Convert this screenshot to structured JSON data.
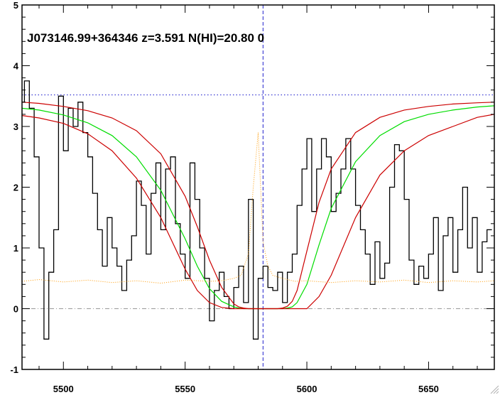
{
  "chart_data": {
    "type": "line",
    "title": "J073146.99+364346 z=3.591 N(HI)=20.80 0",
    "xlim": [
      5483,
      5677
    ],
    "ylim": [
      -1,
      5
    ],
    "xticks": [
      5500,
      5550,
      5600,
      5650
    ],
    "yticks": [
      -1,
      0,
      1,
      2,
      3,
      4,
      5
    ],
    "xlabel": "",
    "ylabel": "",
    "continuum_level": 3.52,
    "absorption_center": 5582,
    "zero_level": 0,
    "colors": {
      "flux": "#000000",
      "fit": "#00dd00",
      "fit_bounds": "#cc0000",
      "continuum": "#2a2ad0",
      "center": "#2020cc",
      "error": "#ff9900",
      "zero": "#999999",
      "frame": "#000000"
    },
    "series": [
      {
        "style": "histogram",
        "x": [
          5483,
          5485,
          5487,
          5489,
          5491,
          5493,
          5495,
          5497,
          5499,
          5501,
          5503,
          5505,
          5507,
          5509,
          5511,
          5513,
          5515,
          5517,
          5519,
          5521,
          5523,
          5525,
          5527,
          5529,
          5531,
          5533,
          5535,
          5537,
          5539,
          5541,
          5543,
          5545,
          5547,
          5549,
          5551,
          5553,
          5555,
          5557,
          5559,
          5561,
          5563,
          5565,
          5567,
          5569,
          5571,
          5573,
          5575,
          5577,
          5579,
          5581,
          5583,
          5585,
          5587,
          5589,
          5591,
          5593,
          5595,
          5597,
          5599,
          5601,
          5603,
          5605,
          5607,
          5609,
          5611,
          5613,
          5615,
          5617,
          5619,
          5621,
          5623,
          5625,
          5627,
          5629,
          5631,
          5633,
          5635,
          5637,
          5639,
          5641,
          5643,
          5645,
          5647,
          5649,
          5651,
          5653,
          5655,
          5657,
          5659,
          5661,
          5663,
          5665,
          5667,
          5669,
          5671,
          5673,
          5675
        ],
        "values": [
          3.4,
          3.75,
          3.3,
          2.5,
          1.0,
          -0.5,
          0.6,
          1.3,
          3.5,
          2.6,
          3.3,
          3.0,
          3.4,
          2.9,
          2.5,
          1.9,
          1.3,
          0.7,
          1.5,
          1.0,
          0.7,
          0.3,
          0.8,
          1.2,
          2.1,
          1.7,
          0.9,
          1.9,
          2.4,
          1.3,
          2.3,
          2.5,
          1.4,
          0.9,
          0.5,
          2.4,
          1.8,
          1.0,
          0.5,
          -0.2,
          0.3,
          0.6,
          0.2,
          0.0,
          0.35,
          0.7,
          0.1,
          1.8,
          -0.5,
          0.5,
          0.7,
          0.35,
          0.3,
          0.6,
          0.1,
          0.6,
          0.9,
          1.7,
          2.3,
          2.8,
          1.6,
          2.3,
          2.8,
          2.5,
          1.6,
          1.9,
          2.3,
          2.8,
          2.3,
          1.7,
          1.3,
          0.9,
          0.4,
          1.1,
          0.5,
          0.75,
          2.0,
          2.7,
          2.6,
          1.8,
          0.8,
          0.4,
          0.7,
          0.5,
          0.9,
          1.5,
          0.3,
          1.2,
          1.5,
          0.6,
          1.3,
          2.0,
          1.0,
          1.5,
          0.6,
          1.1,
          1.3
        ]
      },
      {
        "style": "model",
        "line": "fit",
        "x": [
          5483,
          5490,
          5500,
          5510,
          5520,
          5530,
          5540,
          5550,
          5555,
          5560,
          5565,
          5570,
          5572,
          5574,
          5576,
          5578,
          5580,
          5582,
          5584,
          5586,
          5588,
          5590,
          5592,
          5594,
          5596,
          5600,
          5605,
          5610,
          5620,
          5630,
          5640,
          5650,
          5660,
          5670,
          5677
        ],
        "values": [
          3.3,
          3.27,
          3.19,
          3.06,
          2.85,
          2.5,
          1.95,
          1.15,
          0.7,
          0.33,
          0.12,
          0.03,
          0.01,
          0.0,
          0.0,
          0.0,
          0.0,
          0.0,
          0.0,
          0.0,
          0.0,
          0.0,
          0.01,
          0.03,
          0.1,
          0.4,
          1.05,
          1.65,
          2.42,
          2.85,
          3.08,
          3.2,
          3.27,
          3.32,
          3.34
        ]
      },
      {
        "style": "model",
        "line": "fit_bounds",
        "x": [
          5483,
          5490,
          5500,
          5510,
          5520,
          5530,
          5540,
          5550,
          5555,
          5560,
          5565,
          5570,
          5572,
          5574,
          5576,
          5578,
          5580,
          5582,
          5584,
          5586,
          5588,
          5590,
          5592,
          5594,
          5596,
          5600,
          5605,
          5610,
          5620,
          5630,
          5640,
          5650,
          5660,
          5670,
          5677
        ],
        "values": [
          3.4,
          3.38,
          3.33,
          3.26,
          3.14,
          2.93,
          2.55,
          1.85,
          1.35,
          0.8,
          0.35,
          0.08,
          0.03,
          0.01,
          0.0,
          0.0,
          0.0,
          0.0,
          0.0,
          0.0,
          0.0,
          0.01,
          0.04,
          0.12,
          0.3,
          0.95,
          1.75,
          2.3,
          2.9,
          3.15,
          3.27,
          3.33,
          3.37,
          3.39,
          3.4
        ]
      },
      {
        "style": "model",
        "line": "fit_bounds",
        "x": [
          5483,
          5490,
          5500,
          5510,
          5520,
          5530,
          5540,
          5550,
          5555,
          5560,
          5565,
          5570,
          5572,
          5574,
          5576,
          5578,
          5580,
          5582,
          5584,
          5586,
          5588,
          5590,
          5592,
          5594,
          5596,
          5600,
          5605,
          5610,
          5620,
          5630,
          5640,
          5650,
          5660,
          5670,
          5677
        ],
        "values": [
          3.18,
          3.14,
          3.05,
          2.88,
          2.6,
          2.15,
          1.5,
          0.65,
          0.3,
          0.1,
          0.02,
          0.0,
          0.0,
          0.0,
          0.0,
          0.0,
          0.0,
          0.0,
          0.0,
          0.0,
          0.0,
          0.0,
          0.0,
          0.0,
          0.0,
          0.0,
          0.2,
          0.55,
          1.5,
          2.2,
          2.6,
          2.85,
          3.0,
          3.15,
          3.2
        ]
      },
      {
        "style": "dotted",
        "line": "error",
        "x": [
          5483,
          5490,
          5500,
          5510,
          5520,
          5530,
          5540,
          5550,
          5560,
          5565,
          5570,
          5573,
          5576,
          5578,
          5580,
          5582,
          5584,
          5586,
          5590,
          5595,
          5600,
          5610,
          5620,
          5630,
          5640,
          5650,
          5660,
          5670,
          5677
        ],
        "values": [
          0.45,
          0.48,
          0.44,
          0.47,
          0.43,
          0.46,
          0.42,
          0.47,
          0.45,
          0.46,
          0.5,
          0.55,
          0.9,
          2.0,
          2.9,
          1.1,
          0.7,
          0.55,
          0.5,
          0.45,
          0.46,
          0.43,
          0.46,
          0.44,
          0.47,
          0.43,
          0.46,
          0.44,
          0.46
        ]
      }
    ],
    "grid": false,
    "legend": "none"
  }
}
